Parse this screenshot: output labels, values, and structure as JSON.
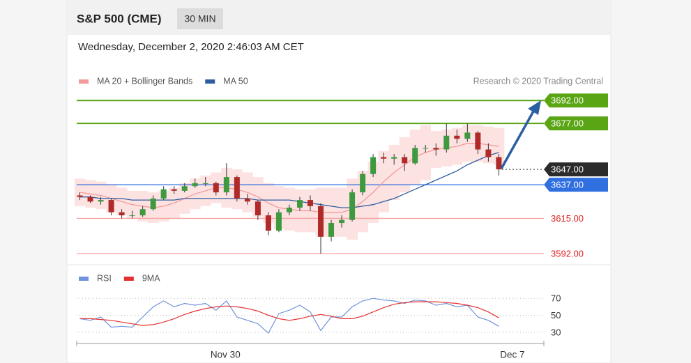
{
  "header": {
    "title": "S&P 500 (CME)",
    "interval": "30 MIN",
    "timestamp": "Wednesday, December 2, 2020 2:46:03 AM CET",
    "credit": "Research © 2020 Trading Central"
  },
  "chart_data": [
    {
      "type": "candlestick",
      "xlim": [
        -0.3,
        44.3
      ],
      "ylim": [
        3587,
        3698
      ],
      "up_color": "#3f9a3f",
      "down_color": "#b02a2a",
      "wick_color": "#333333",
      "ohlc": [
        [
          3630,
          3632,
          3627,
          3629
        ],
        [
          3629,
          3630,
          3625,
          3626
        ],
        [
          3626,
          3629,
          3624,
          3627
        ],
        [
          3627,
          3628,
          3617,
          3619
        ],
        [
          3619,
          3621,
          3615,
          3617
        ],
        [
          3617,
          3620,
          3615,
          3617
        ],
        [
          3617,
          3623,
          3616,
          3621
        ],
        [
          3621,
          3630,
          3620,
          3628
        ],
        [
          3628,
          3636,
          3627,
          3634
        ],
        [
          3634,
          3636,
          3631,
          3633
        ],
        [
          3633,
          3638,
          3632,
          3636
        ],
        [
          3636,
          3641,
          3635,
          3638
        ],
        [
          3638,
          3642,
          3636,
          3638
        ],
        [
          3638,
          3639,
          3630,
          3632
        ],
        [
          3632,
          3651,
          3630,
          3642
        ],
        [
          3642,
          3643,
          3626,
          3628
        ],
        [
          3628,
          3631,
          3624,
          3626
        ],
        [
          3626,
          3627,
          3614,
          3617
        ],
        [
          3617,
          3619,
          3604,
          3607
        ],
        [
          3607,
          3621,
          3606,
          3619
        ],
        [
          3619,
          3624,
          3617,
          3622
        ],
        [
          3622,
          3629,
          3620,
          3627
        ],
        [
          3627,
          3630,
          3620,
          3623
        ],
        [
          3623,
          3625,
          3592,
          3603
        ],
        [
          3603,
          3614,
          3600,
          3612
        ],
        [
          3612,
          3617,
          3609,
          3614
        ],
        [
          3614,
          3634,
          3613,
          3632
        ],
        [
          3632,
          3646,
          3630,
          3644
        ],
        [
          3644,
          3657,
          3642,
          3655
        ],
        [
          3655,
          3658,
          3651,
          3654
        ],
        [
          3654,
          3657,
          3650,
          3655
        ],
        [
          3655,
          3657,
          3646,
          3651
        ],
        [
          3651,
          3663,
          3650,
          3661
        ],
        [
          3661,
          3663,
          3658,
          3661
        ],
        [
          3661,
          3664,
          3656,
          3660
        ],
        [
          3660,
          3677,
          3658,
          3669
        ],
        [
          3669,
          3673,
          3664,
          3667
        ],
        [
          3667,
          3677,
          3665,
          3671
        ],
        [
          3671,
          3672,
          3657,
          3660
        ],
        [
          3660,
          3664,
          3652,
          3655
        ],
        [
          3655,
          3657,
          3643,
          3647
        ]
      ],
      "series": [
        {
          "name": "MA 20 + Bollinger Bands",
          "color": "#f29a9a",
          "band_color": "#fde2e2",
          "values": [
            3632,
            3631,
            3630,
            3628,
            3626,
            3624,
            3623,
            3622,
            3623,
            3625,
            3628,
            3631,
            3633,
            3635,
            3635,
            3634,
            3632,
            3629,
            3625,
            3622,
            3621,
            3620,
            3620,
            3619,
            3619,
            3619,
            3621,
            3626,
            3632,
            3639,
            3645,
            3650,
            3655,
            3658,
            3660,
            3661,
            3662,
            3664,
            3664,
            3663,
            3662
          ],
          "upper": [
            3641,
            3640,
            3639,
            3637,
            3635,
            3633,
            3633,
            3632,
            3633,
            3635,
            3638,
            3641,
            3643,
            3645,
            3648,
            3647,
            3645,
            3642,
            3638,
            3636,
            3635,
            3634,
            3634,
            3635,
            3635,
            3635,
            3641,
            3646,
            3652,
            3659,
            3663,
            3668,
            3673,
            3676,
            3672,
            3673,
            3674,
            3676,
            3676,
            3675,
            3674
          ],
          "lower": [
            3623,
            3622,
            3621,
            3619,
            3617,
            3615,
            3613,
            3612,
            3613,
            3615,
            3618,
            3621,
            3623,
            3625,
            3622,
            3621,
            3619,
            3616,
            3612,
            3608,
            3607,
            3606,
            3606,
            3603,
            3603,
            3603,
            3601,
            3606,
            3612,
            3619,
            3627,
            3632,
            3637,
            3640,
            3648,
            3649,
            3650,
            3652,
            3652,
            3651,
            3650
          ]
        },
        {
          "name": "MA 50",
          "color": "#2f5d9e",
          "values": [
            3629,
            3629,
            3628,
            3628,
            3628,
            3627,
            3627,
            3627,
            3627,
            3627,
            3628,
            3628,
            3628,
            3628,
            3628,
            3628,
            3628,
            3627,
            3627,
            3627,
            3627,
            3626,
            3625,
            3624,
            3623,
            3622,
            3622,
            3623,
            3624,
            3626,
            3628,
            3631,
            3634,
            3637,
            3640,
            3643,
            3646,
            3650,
            3653,
            3656,
            3658
          ]
        }
      ],
      "levels": [
        {
          "value": 3692,
          "label": "3692.00",
          "color": "#5aa514",
          "text_color": "#ffffff",
          "tag": true,
          "line": "solid"
        },
        {
          "value": 3677,
          "label": "3677.00",
          "color": "#5aa514",
          "text_color": "#ffffff",
          "tag": true,
          "line": "solid"
        },
        {
          "value": 3647,
          "label": "3647.00",
          "color": "#2b2b2b",
          "text_color": "#ffffff",
          "tag": true,
          "line": "dotted"
        },
        {
          "value": 3637,
          "label": "3637.00",
          "color": "#2f6fe0",
          "text_color": "#ffffff",
          "tag": true,
          "line": "solid"
        },
        {
          "value": 3615,
          "label": "3615.00",
          "color": "#f6a3a3",
          "text_color": "#e01f1f",
          "tag": false,
          "line": "solid"
        },
        {
          "value": 3592,
          "label": "3592.00",
          "color": "#f6a3a3",
          "text_color": "#e01f1f",
          "tag": false,
          "line": "solid"
        }
      ]
    },
    {
      "type": "line",
      "xlim": [
        -0.3,
        44.3
      ],
      "ylim": [
        20,
        85
      ],
      "yticks": [
        30,
        50,
        70
      ],
      "grid": "dotted",
      "xticks": [
        {
          "value": 13.9,
          "label": "Nov 30"
        },
        {
          "value": 41.3,
          "label": "Dec 7"
        }
      ],
      "series": [
        {
          "name": "RSI",
          "color": "#6f93dc",
          "values": [
            46,
            44,
            48,
            36,
            37,
            36,
            48,
            60,
            67,
            60,
            64,
            62,
            64,
            56,
            67,
            48,
            44,
            40,
            29,
            52,
            56,
            62,
            54,
            32,
            48,
            48,
            60,
            67,
            70,
            68,
            67,
            64,
            68,
            67,
            62,
            64,
            60,
            62,
            48,
            44,
            37
          ]
        },
        {
          "name": "9MA",
          "color": "#e53030",
          "values": [
            46,
            46,
            45,
            44,
            42,
            40,
            38,
            39,
            42,
            46,
            51,
            55,
            58,
            60,
            61,
            60,
            58,
            55,
            50,
            46,
            44,
            46,
            49,
            51,
            49,
            46,
            46,
            49,
            54,
            59,
            63,
            65,
            66,
            66,
            66,
            65,
            64,
            62,
            59,
            54,
            47
          ]
        }
      ]
    }
  ]
}
